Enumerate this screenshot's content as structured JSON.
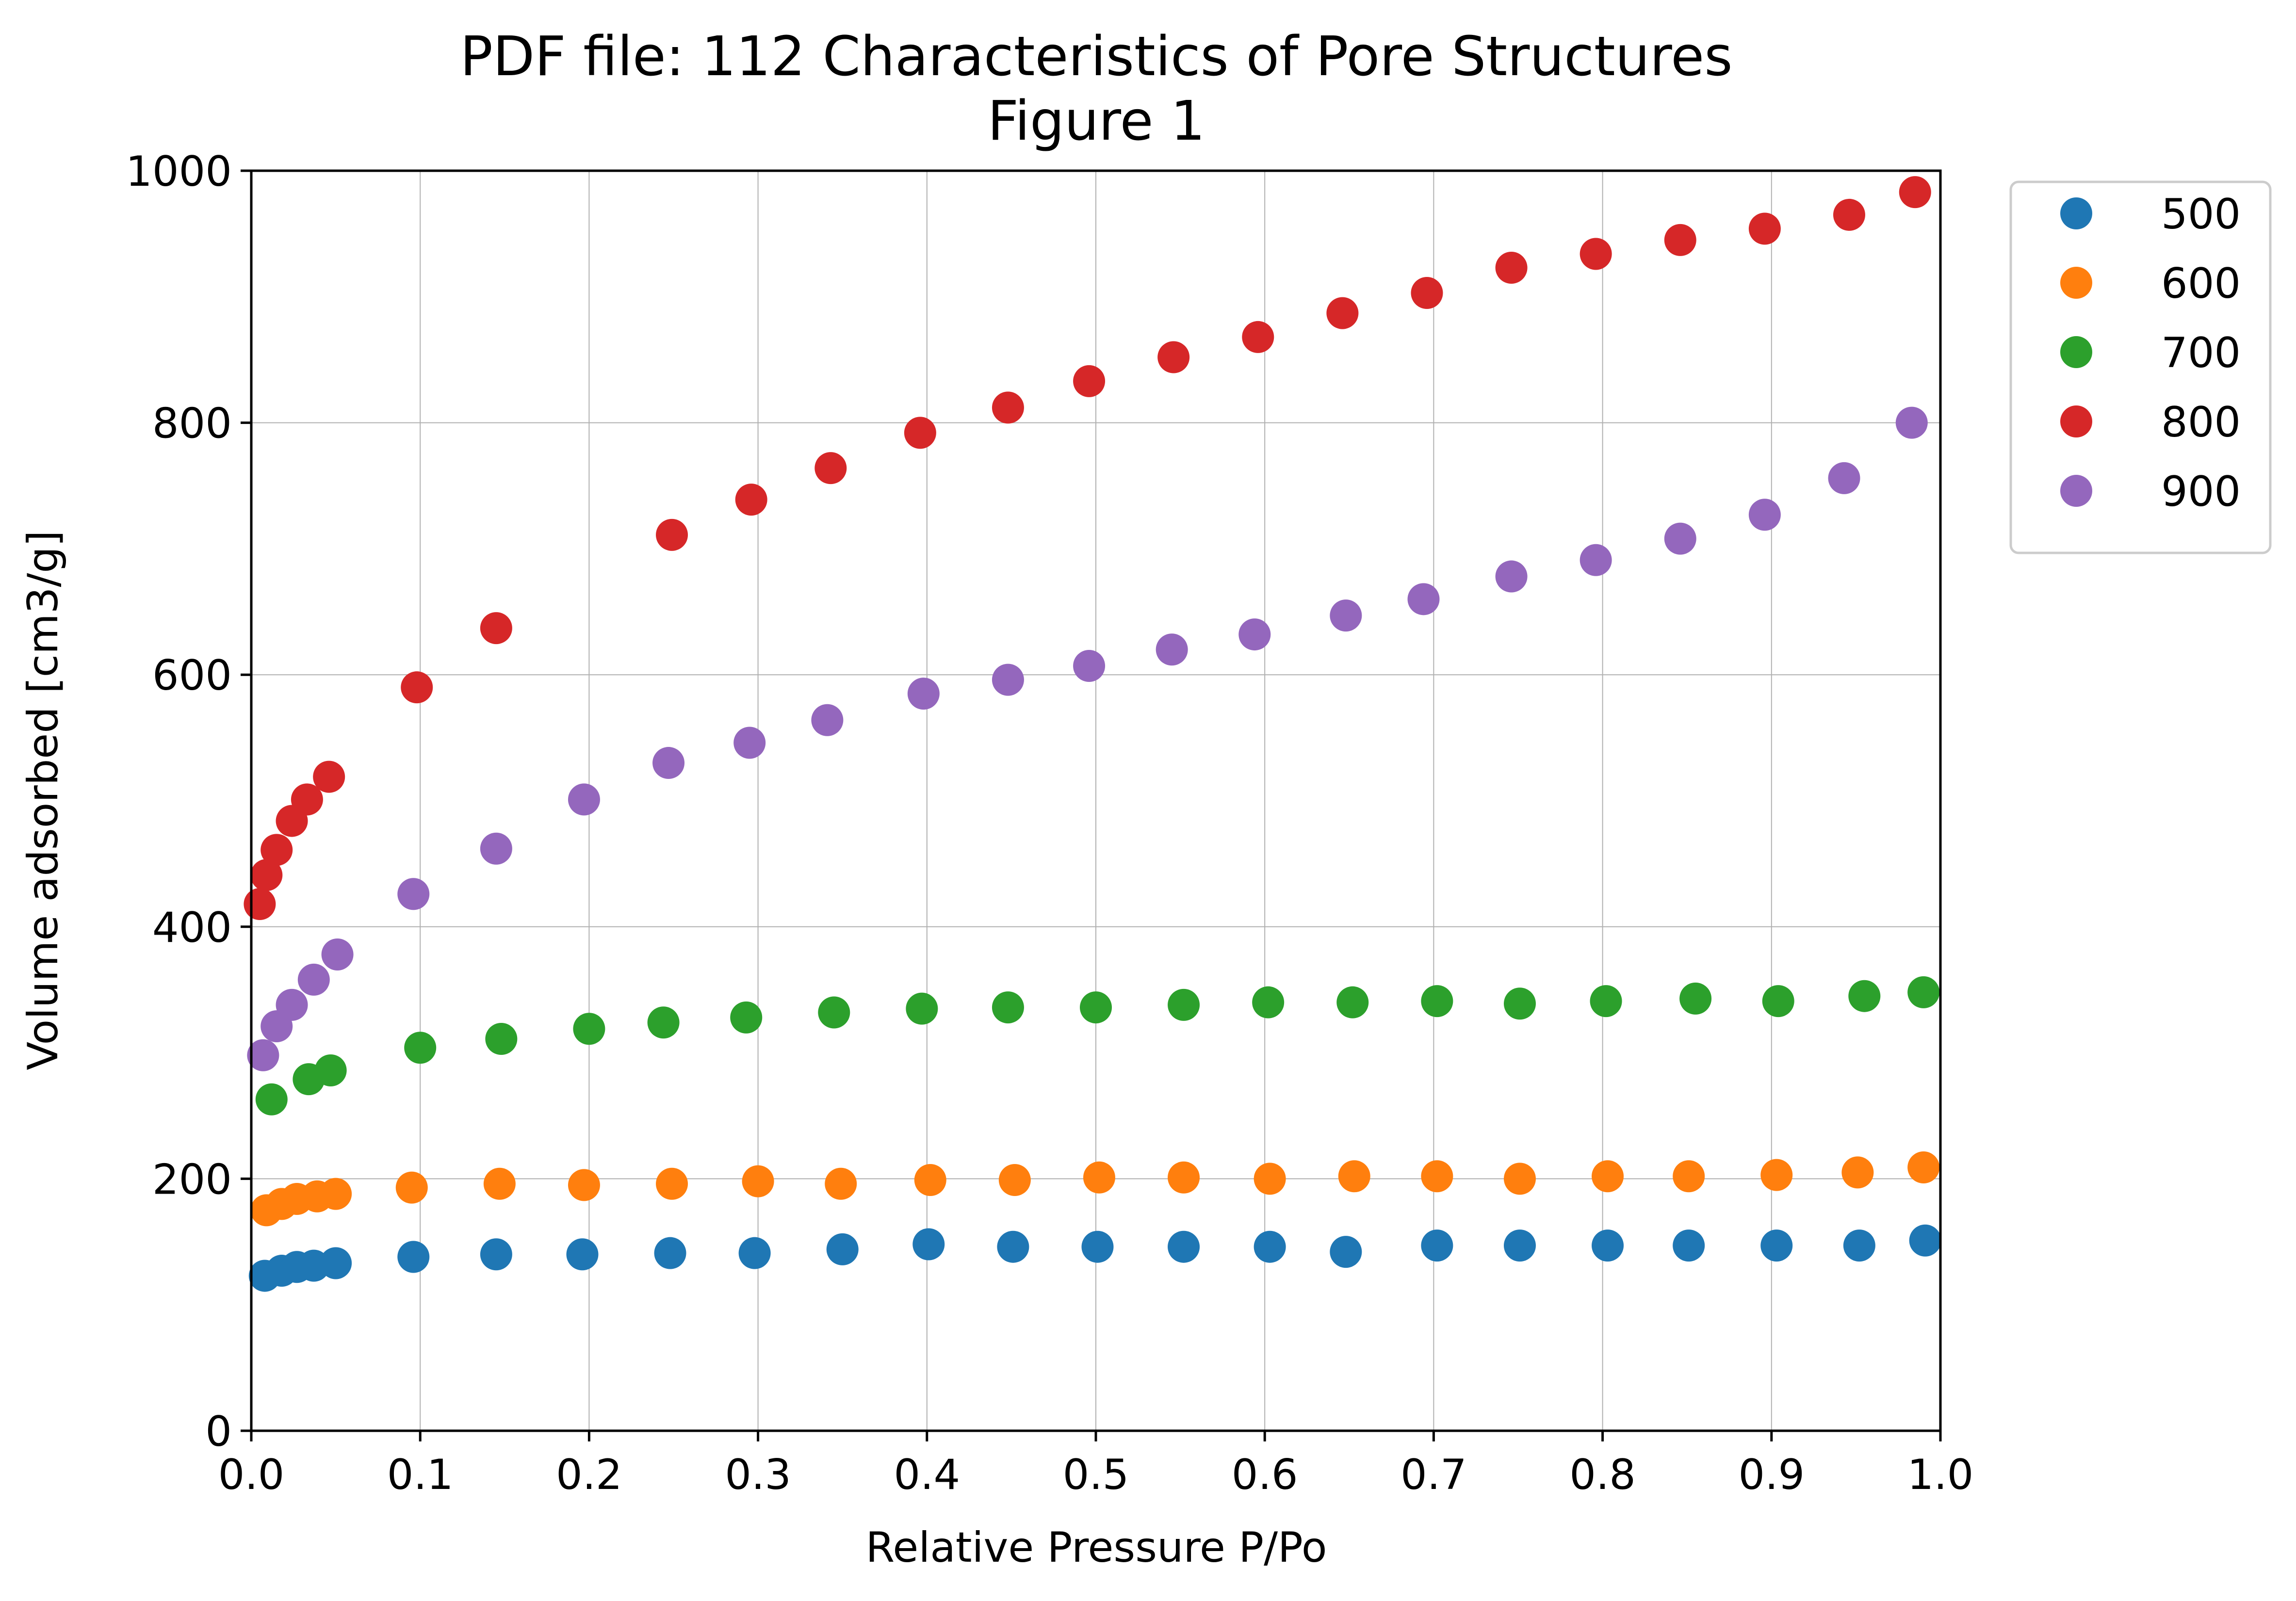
{
  "chart_data": {
    "type": "scatter",
    "title": "PDF file: 112 Characteristics of Pore Structures",
    "subtitle": "Figure 1",
    "xlabel": "Relative Pressure P/Po",
    "ylabel": "Volume adsorbed [cm3/g]",
    "xlim": [
      0.0,
      1.0
    ],
    "ylim": [
      0,
      1000
    ],
    "xticks": [
      0.0,
      0.1,
      0.2,
      0.3,
      0.4,
      0.5,
      0.6,
      0.7,
      0.8,
      0.9,
      1.0
    ],
    "xtick_labels": [
      "0.0",
      "0.1",
      "0.2",
      "0.3",
      "0.4",
      "0.5",
      "0.6",
      "0.7",
      "0.8",
      "0.9",
      "1.0"
    ],
    "yticks": [
      0,
      200,
      400,
      600,
      800,
      1000
    ],
    "ytick_labels": [
      "0",
      "200",
      "400",
      "600",
      "800",
      "1000"
    ],
    "grid": true,
    "legend_position": "outside-top-right",
    "series": [
      {
        "name": "500",
        "color": "#1f77b4",
        "points": [
          [
            0.008,
            123
          ],
          [
            0.018,
            127
          ],
          [
            0.027,
            130
          ],
          [
            0.037,
            131
          ],
          [
            0.05,
            133
          ],
          [
            0.096,
            138
          ],
          [
            0.145,
            140
          ],
          [
            0.196,
            140
          ],
          [
            0.248,
            141
          ],
          [
            0.298,
            141
          ],
          [
            0.35,
            144
          ],
          [
            0.401,
            148
          ],
          [
            0.451,
            146
          ],
          [
            0.501,
            146
          ],
          [
            0.552,
            146
          ],
          [
            0.603,
            146
          ],
          [
            0.648,
            142
          ],
          [
            0.702,
            147
          ],
          [
            0.751,
            147
          ],
          [
            0.803,
            147
          ],
          [
            0.851,
            147
          ],
          [
            0.903,
            147
          ],
          [
            0.952,
            147
          ],
          [
            0.991,
            151
          ]
        ]
      },
      {
        "name": "600",
        "color": "#ff7f0e",
        "points": [
          [
            0.009,
            175
          ],
          [
            0.018,
            180
          ],
          [
            0.027,
            184
          ],
          [
            0.039,
            186
          ],
          [
            0.05,
            188
          ],
          [
            0.095,
            193
          ],
          [
            0.147,
            196
          ],
          [
            0.197,
            195
          ],
          [
            0.249,
            196
          ],
          [
            0.3,
            198
          ],
          [
            0.349,
            196
          ],
          [
            0.402,
            199
          ],
          [
            0.452,
            199
          ],
          [
            0.502,
            201
          ],
          [
            0.552,
            201
          ],
          [
            0.603,
            200
          ],
          [
            0.653,
            202
          ],
          [
            0.702,
            202
          ],
          [
            0.751,
            200
          ],
          [
            0.803,
            202
          ],
          [
            0.851,
            202
          ],
          [
            0.903,
            203
          ],
          [
            0.951,
            205
          ],
          [
            0.99,
            209
          ]
        ]
      },
      {
        "name": "700",
        "color": "#2ca02c",
        "points": [
          [
            0.012,
            263
          ],
          [
            0.034,
            279
          ],
          [
            0.047,
            286
          ],
          [
            0.1,
            304
          ],
          [
            0.148,
            311
          ],
          [
            0.2,
            319
          ],
          [
            0.244,
            324
          ],
          [
            0.293,
            328
          ],
          [
            0.345,
            332
          ],
          [
            0.397,
            335
          ],
          [
            0.448,
            336
          ],
          [
            0.5,
            336
          ],
          [
            0.552,
            338
          ],
          [
            0.602,
            340
          ],
          [
            0.652,
            340
          ],
          [
            0.702,
            341
          ],
          [
            0.751,
            339
          ],
          [
            0.802,
            341
          ],
          [
            0.855,
            343
          ],
          [
            0.904,
            341
          ],
          [
            0.955,
            345
          ],
          [
            0.99,
            348
          ]
        ]
      },
      {
        "name": "800",
        "color": "#d62728",
        "points": [
          [
            0.005,
            418
          ],
          [
            0.009,
            441
          ],
          [
            0.015,
            461
          ],
          [
            0.024,
            484
          ],
          [
            0.033,
            501
          ],
          [
            0.046,
            519
          ],
          [
            0.098,
            590
          ],
          [
            0.145,
            637
          ],
          [
            0.249,
            711
          ],
          [
            0.296,
            739
          ],
          [
            0.343,
            764
          ],
          [
            0.396,
            792
          ],
          [
            0.448,
            812
          ],
          [
            0.496,
            833
          ],
          [
            0.546,
            852
          ],
          [
            0.596,
            868
          ],
          [
            0.646,
            887
          ],
          [
            0.696,
            903
          ],
          [
            0.746,
            923
          ],
          [
            0.796,
            934
          ],
          [
            0.846,
            945
          ],
          [
            0.896,
            954
          ],
          [
            0.946,
            965
          ],
          [
            0.985,
            983
          ]
        ]
      },
      {
        "name": "900",
        "color": "#9467bd",
        "points": [
          [
            0.007,
            298
          ],
          [
            0.015,
            321
          ],
          [
            0.024,
            338
          ],
          [
            0.037,
            358
          ],
          [
            0.051,
            378
          ],
          [
            0.096,
            426
          ],
          [
            0.145,
            462
          ],
          [
            0.197,
            501
          ],
          [
            0.247,
            530
          ],
          [
            0.295,
            546
          ],
          [
            0.341,
            564
          ],
          [
            0.398,
            585
          ],
          [
            0.448,
            596
          ],
          [
            0.496,
            607
          ],
          [
            0.545,
            620
          ],
          [
            0.594,
            632
          ],
          [
            0.648,
            647
          ],
          [
            0.694,
            660
          ],
          [
            0.746,
            678
          ],
          [
            0.796,
            691
          ],
          [
            0.846,
            708
          ],
          [
            0.896,
            727
          ],
          [
            0.943,
            756
          ],
          [
            0.983,
            800
          ]
        ]
      }
    ]
  }
}
